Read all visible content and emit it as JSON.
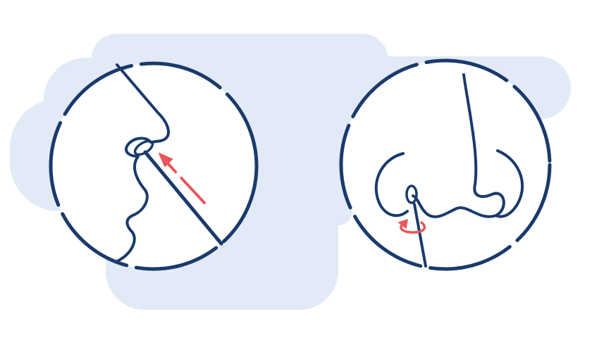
{
  "illustration": {
    "subject": "nasal-swab-instructions",
    "panels": [
      {
        "view": "side-profile",
        "action": "insert-swab-into-nostril"
      },
      {
        "view": "front-nose",
        "action": "rotate-swab-in-nostril"
      }
    ]
  },
  "colors": {
    "background": "#ffffff",
    "backdrop": "#e2eaf7",
    "outline": "#1a3a6b",
    "accent": "#e8565a"
  },
  "icons": {
    "insert_arrow": "arrow-up-left-icon",
    "rotate_arrow": "rotate-arrow-icon"
  }
}
